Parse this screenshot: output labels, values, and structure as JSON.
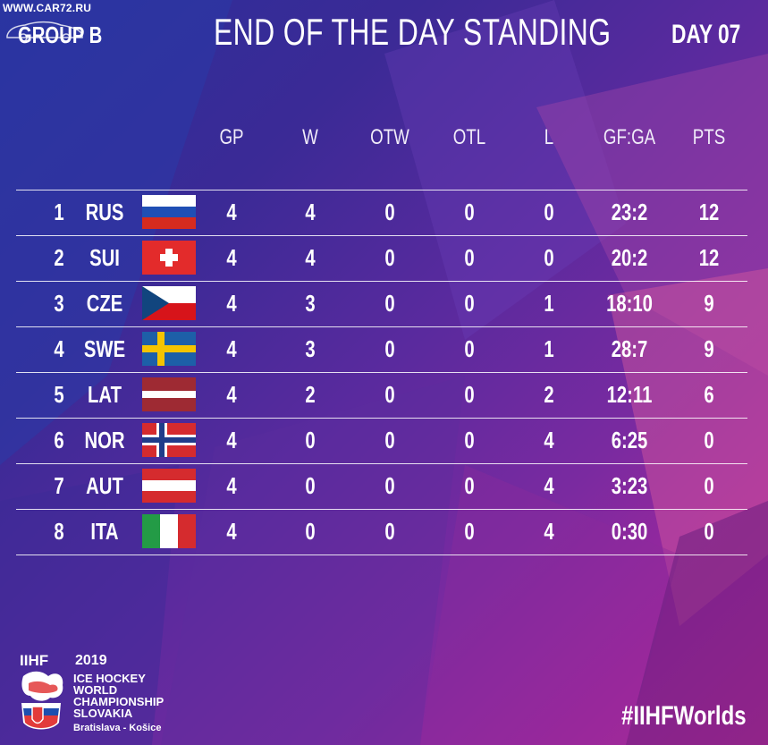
{
  "watermark": "WWW.CAR72.RU",
  "header": {
    "group": "GROUP B",
    "title": "END OF THE DAY STANDING",
    "day": "DAY 07"
  },
  "table": {
    "columns": [
      "GP",
      "W",
      "OTW",
      "OTL",
      "L",
      "GF:GA",
      "PTS"
    ],
    "rows": [
      {
        "rank": "1",
        "team": "RUS",
        "flag": "russia-flag",
        "gp": "4",
        "w": "4",
        "otw": "0",
        "otl": "0",
        "l": "0",
        "gfga": "23:2",
        "pts": "12"
      },
      {
        "rank": "2",
        "team": "SUI",
        "flag": "switzerland-flag",
        "gp": "4",
        "w": "4",
        "otw": "0",
        "otl": "0",
        "l": "0",
        "gfga": "20:2",
        "pts": "12"
      },
      {
        "rank": "3",
        "team": "CZE",
        "flag": "czechia-flag",
        "gp": "4",
        "w": "3",
        "otw": "0",
        "otl": "0",
        "l": "1",
        "gfga": "18:10",
        "pts": "9"
      },
      {
        "rank": "4",
        "team": "SWE",
        "flag": "sweden-flag",
        "gp": "4",
        "w": "3",
        "otw": "0",
        "otl": "0",
        "l": "1",
        "gfga": "28:7",
        "pts": "9"
      },
      {
        "rank": "5",
        "team": "LAT",
        "flag": "latvia-flag",
        "gp": "4",
        "w": "2",
        "otw": "0",
        "otl": "0",
        "l": "2",
        "gfga": "12:11",
        "pts": "6"
      },
      {
        "rank": "6",
        "team": "NOR",
        "flag": "norway-flag",
        "gp": "4",
        "w": "0",
        "otw": "0",
        "otl": "0",
        "l": "4",
        "gfga": "6:25",
        "pts": "0"
      },
      {
        "rank": "7",
        "team": "AUT",
        "flag": "austria-flag",
        "gp": "4",
        "w": "0",
        "otw": "0",
        "otl": "0",
        "l": "4",
        "gfga": "3:23",
        "pts": "0"
      },
      {
        "rank": "8",
        "team": "ITA",
        "flag": "italy-flag",
        "gp": "4",
        "w": "0",
        "otw": "0",
        "otl": "0",
        "l": "4",
        "gfga": "0:30",
        "pts": "0"
      }
    ]
  },
  "footer": {
    "logo_mark": "IIHF",
    "year": "2019",
    "event_lines": [
      "ICE HOCKEY",
      "WORLD",
      "CHAMPIONSHIP",
      "SLOVAKIA"
    ],
    "cities": "Bratislava - Košice",
    "hashtag": "#IIHFWorlds"
  },
  "colors": {
    "background_start": "#2b2f9a",
    "background_end": "#c12a95",
    "text": "#ffffff"
  }
}
